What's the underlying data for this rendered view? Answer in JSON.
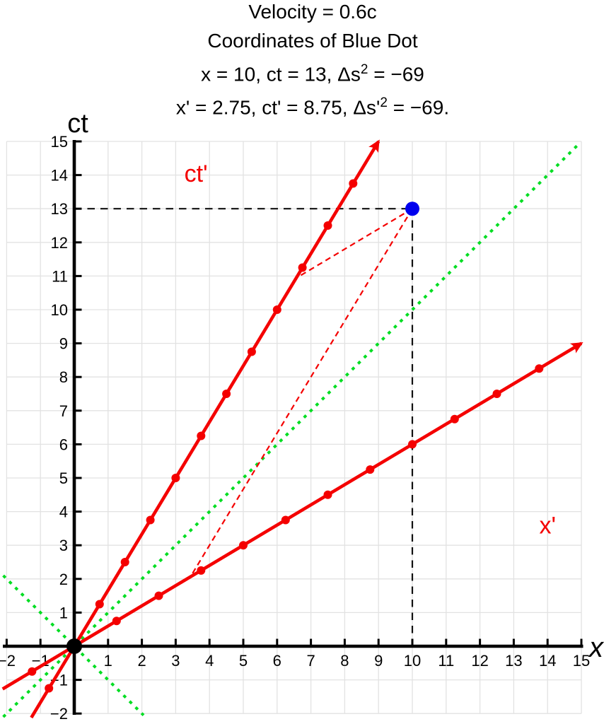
{
  "header": {
    "line1": "Velocity = 0.6c",
    "line2": "Coordinates of Blue Dot",
    "line3": {
      "a": "x = 10, ct = 13, Δs",
      "sup": "2",
      "b": " = −69"
    },
    "line4": {
      "a": "x' = 2.75, ct' = 8.75, Δs'",
      "sup": "2",
      "b": " = −69."
    }
  },
  "chart_data": {
    "type": "line",
    "description": "Minkowski spacetime diagram, boost velocity 0.6c, blue event dot at (10,13)",
    "beta": 0.6,
    "gamma": 1.25,
    "axes": {
      "x": {
        "label": "x",
        "ticks": [
          -2,
          -1,
          1,
          2,
          3,
          4,
          5,
          6,
          7,
          8,
          9,
          10,
          11,
          12,
          13,
          14,
          15
        ],
        "range": [
          -2.1,
          15.1
        ]
      },
      "ct": {
        "label": "ct",
        "ticks": [
          -2,
          -1,
          1,
          2,
          3,
          4,
          5,
          6,
          7,
          8,
          9,
          10,
          11,
          12,
          13,
          14,
          15
        ],
        "range": [
          -2.1,
          15.1
        ]
      }
    },
    "grid": {
      "x_range": [
        -2,
        15
      ],
      "ct_range": [
        -2,
        15
      ],
      "step": 1,
      "color": "#e2e2e2"
    },
    "light_cone": {
      "color": "#00dd22",
      "style": "dotted",
      "lines": [
        {
          "name": "light-cone-line-ascending",
          "from": [
            -2.1,
            -2.1
          ],
          "to": [
            14.95,
            14.95
          ]
        },
        {
          "name": "light-cone-line-descending",
          "from": [
            -2.1,
            2.1
          ],
          "to": [
            2.05,
            -2.05
          ]
        }
      ]
    },
    "primed_axes": {
      "color": "#f40000",
      "ct_prime": {
        "label": "ct'",
        "label_pos": [
          3.6,
          14.05
        ],
        "line": {
          "from": [
            -1.27,
            -2.12
          ],
          "to": [
            9,
            15
          ]
        },
        "unit_marks": [
          [
            -0.75,
            -1.25
          ],
          [
            0.75,
            1.25
          ],
          [
            1.5,
            2.5
          ],
          [
            2.25,
            3.75
          ],
          [
            3,
            5
          ],
          [
            3.75,
            6.25
          ],
          [
            4.5,
            7.5
          ],
          [
            5.25,
            8.75
          ],
          [
            6,
            10
          ],
          [
            6.75,
            11.25
          ],
          [
            7.5,
            12.5
          ],
          [
            8.25,
            13.75
          ]
        ]
      },
      "x_prime": {
        "label": "x'",
        "label_pos": [
          14.0,
          3.6
        ],
        "line": {
          "from": [
            -2.12,
            -1.27
          ],
          "to": [
            15,
            9
          ]
        },
        "unit_marks": [
          [
            -1.25,
            -0.75
          ],
          [
            1.25,
            0.75
          ],
          [
            2.5,
            1.5
          ],
          [
            3.75,
            2.25
          ],
          [
            5,
            3
          ],
          [
            6.25,
            3.75
          ],
          [
            7.5,
            4.5
          ],
          [
            8.75,
            5.25
          ],
          [
            10,
            6
          ],
          [
            11.25,
            6.75
          ],
          [
            12.5,
            7.5
          ],
          [
            13.75,
            8.25
          ]
        ]
      }
    },
    "guides": {
      "black_dashed": {
        "color": "#111111",
        "lines": [
          {
            "name": "guide-dashed-ct-13",
            "from": [
              0,
              13
            ],
            "to": [
              10,
              13
            ]
          },
          {
            "name": "guide-dashed-x-10",
            "from": [
              10,
              0
            ],
            "to": [
              10,
              13
            ]
          }
        ]
      },
      "red_dashed": {
        "color": "#f40000",
        "lines": [
          {
            "name": "projection-to-ct-prime-axis",
            "from": [
              10,
              13
            ],
            "to": [
              6.5625,
              10.9375
            ]
          },
          {
            "name": "projection-to-x-prime-axis",
            "from": [
              10,
              13
            ],
            "to": [
              3.4375,
              2.0625
            ]
          }
        ]
      }
    },
    "points": [
      {
        "name": "origin-dot",
        "x": 0,
        "ct": 0,
        "color": "#000000",
        "r": 11,
        "interactable": false
      },
      {
        "name": "blue-dot",
        "x": 10,
        "ct": 13,
        "color": "#0000ee",
        "r": 10,
        "interactable": true
      }
    ]
  }
}
